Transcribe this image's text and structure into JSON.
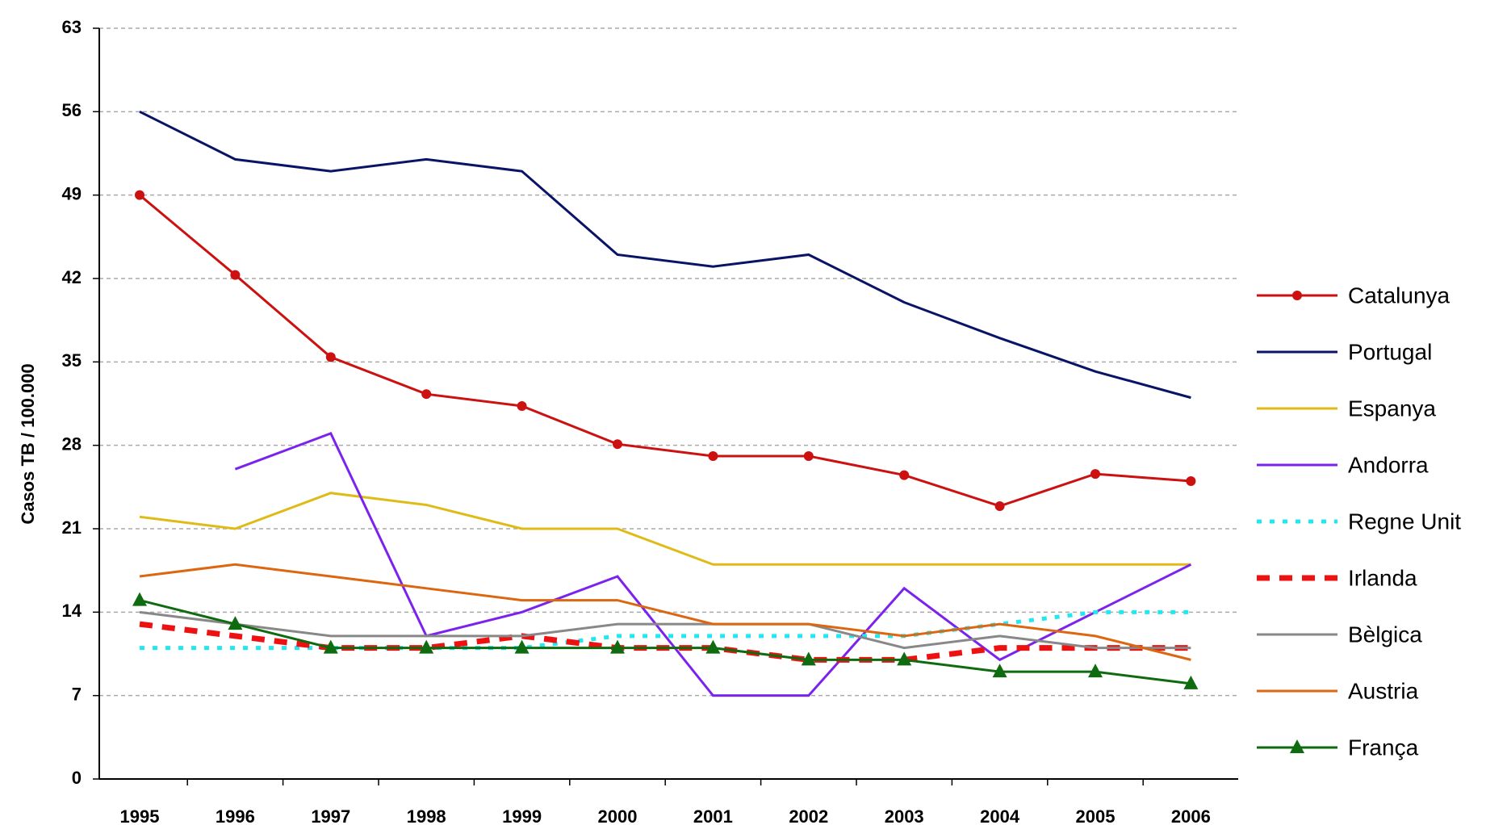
{
  "chart_data": {
    "type": "line",
    "y_label": "Casos TB / 100.000",
    "categories": [
      "1995",
      "1996",
      "1997",
      "1998",
      "1999",
      "2000",
      "2001",
      "2002",
      "2003",
      "2004",
      "2005",
      "2006"
    ],
    "ylim": [
      0,
      63
    ],
    "yticks": [
      0,
      7,
      14,
      21,
      28,
      35,
      42,
      49,
      56,
      63
    ],
    "grid": true,
    "legend": "right",
    "series": [
      {
        "name": "Catalunya",
        "color": "#cc1111",
        "marker": "circle",
        "dash": "solid",
        "values": [
          49,
          42.3,
          35.4,
          32.3,
          31.3,
          28.1,
          27.1,
          27.1,
          25.5,
          22.9,
          25.6,
          25.0
        ]
      },
      {
        "name": "Portugal",
        "color": "#0a1466",
        "dash": "solid",
        "values": [
          56,
          52,
          51,
          52,
          51,
          44,
          43,
          44,
          40,
          37,
          34.2,
          32
        ]
      },
      {
        "name": "Espanya",
        "color": "#e0bb18",
        "dash": "solid",
        "values": [
          22,
          21,
          24,
          23,
          21,
          21,
          18,
          18,
          18,
          18,
          18,
          18
        ]
      },
      {
        "name": "Andorra",
        "color": "#7b22ee",
        "dash": "solid",
        "values": [
          null,
          26,
          29,
          12,
          14,
          17,
          7,
          7,
          16,
          10,
          14,
          18
        ]
      },
      {
        "name": "Regne Unit",
        "color": "#22e6f0",
        "dash": "dotted",
        "values": [
          11,
          11,
          11,
          11,
          11,
          12,
          12,
          12,
          12,
          13,
          14,
          14
        ]
      },
      {
        "name": "Irlanda",
        "color": "#ee1111",
        "dash": "dashed",
        "values": [
          13,
          12,
          11,
          11,
          12,
          11,
          11,
          10,
          10,
          11,
          11,
          11
        ]
      },
      {
        "name": "Bèlgica",
        "color": "#888888",
        "dash": "solid",
        "values": [
          14,
          13,
          12,
          12,
          12,
          13,
          13,
          13,
          11,
          12,
          11,
          11
        ]
      },
      {
        "name": "Austria",
        "color": "#dd6611",
        "dash": "solid",
        "values": [
          17,
          18,
          17,
          16,
          15,
          15,
          13,
          13,
          12,
          13,
          12,
          10
        ]
      },
      {
        "name": "França",
        "color": "#0f6b0f",
        "marker": "triangle",
        "dash": "solid",
        "values": [
          15,
          13,
          11,
          11,
          11,
          11,
          11,
          10,
          10,
          9,
          9,
          8
        ]
      }
    ]
  }
}
